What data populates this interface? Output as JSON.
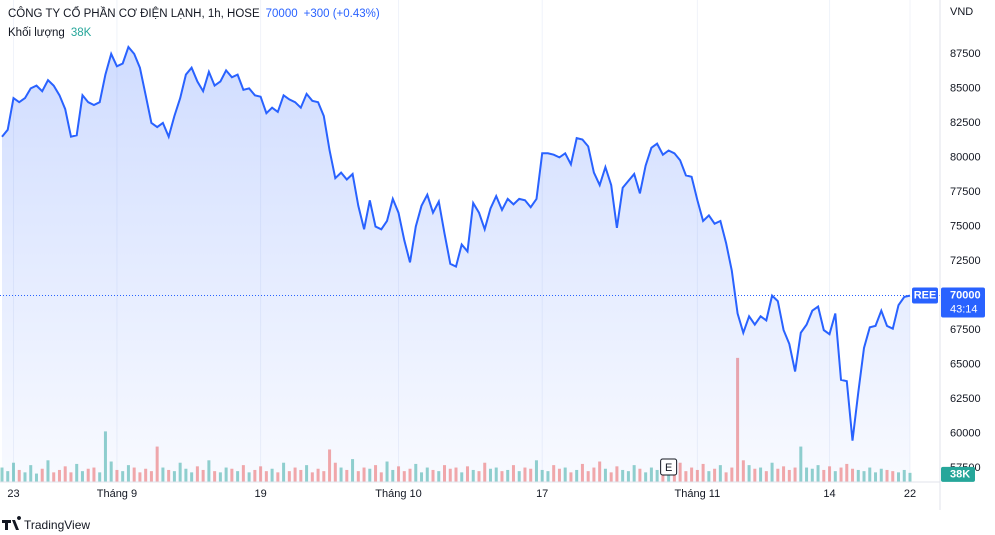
{
  "header": {
    "title": "CÔNG TY CỔ PHẦN CƠ ĐIỆN LẠNH, 1h, HOSE",
    "change": "+300 (+0.43%)",
    "volume_label": "Khối lượng"
  },
  "footer": {
    "brand": "TradingView"
  },
  "chart_data": {
    "type": "line",
    "currency": "VND",
    "series": [
      {
        "name": "REE",
        "color": "#2962ff",
        "values": [
          81500,
          82000,
          84300,
          84000,
          84300,
          85000,
          85200,
          84800,
          85600,
          85200,
          84500,
          83500,
          81500,
          81600,
          84500,
          84000,
          83800,
          84000,
          86000,
          87500,
          86600,
          86800,
          88000,
          87500,
          86500,
          84500,
          82500,
          82200,
          82500,
          81500,
          83000,
          84300,
          86000,
          86500,
          85500,
          84800,
          86200,
          85200,
          85500,
          86300,
          85800,
          86000,
          84900,
          85000,
          84500,
          84400,
          83200,
          83600,
          83300,
          84500,
          84200,
          84000,
          83600,
          84600,
          84100,
          84000,
          83000,
          80500,
          78500,
          78900,
          78400,
          78800,
          76500,
          74800,
          76900,
          75000,
          74800,
          75400,
          77000,
          76000,
          74000,
          72400,
          75000,
          76500,
          77300,
          76000,
          76800,
          74500,
          72300,
          72100,
          73700,
          73200,
          76700,
          76000,
          74800,
          76300,
          77200,
          76200,
          77000,
          76600,
          77000,
          76900,
          76400,
          77000,
          80300,
          80300,
          80200,
          80000,
          80300,
          79500,
          81400,
          81300,
          80800,
          78900,
          78000,
          79300,
          78000,
          74900,
          77800,
          78300,
          78800,
          77400,
          79400,
          80700,
          81000,
          80200,
          80500,
          80300,
          79800,
          78700,
          78600,
          76900,
          75400,
          75800,
          75200,
          75400,
          73800,
          71800,
          68700,
          67300,
          68500,
          67900,
          68500,
          68200,
          70000,
          69600,
          67500,
          66500,
          64500,
          67300,
          67900,
          68900,
          69200,
          67500,
          67200,
          68700,
          63900,
          63800,
          59500,
          63000,
          66200,
          67700,
          67800,
          68900,
          67800,
          67600,
          69300,
          69900,
          70000
        ]
      },
      {
        "name": "Khối lượng",
        "axis": "y2",
        "up_color": "#26a69a",
        "down_color": "#ef5350",
        "last_label": "38K",
        "values": [
          60,
          45,
          80,
          50,
          40,
          70,
          35,
          55,
          90,
          40,
          50,
          65,
          40,
          75,
          45,
          55,
          60,
          40,
          210,
          85,
          50,
          45,
          70,
          60,
          40,
          55,
          45,
          147,
          60,
          50,
          45,
          80,
          55,
          40,
          65,
          50,
          90,
          45,
          40,
          60,
          55,
          45,
          70,
          40,
          50,
          65,
          45,
          55,
          40,
          80,
          45,
          60,
          50,
          70,
          40,
          55,
          45,
          135,
          80,
          60,
          50,
          95,
          45,
          60,
          55,
          70,
          40,
          85,
          50,
          65,
          45,
          55,
          75,
          40,
          60,
          50,
          45,
          70,
          55,
          60,
          40,
          65,
          50,
          45,
          80,
          55,
          60,
          45,
          50,
          70,
          45,
          60,
          55,
          90,
          50,
          45,
          70,
          55,
          60,
          40,
          50,
          75,
          45,
          60,
          85,
          55,
          40,
          65,
          50,
          45,
          70,
          55,
          40,
          60,
          50,
          45,
          65,
          55,
          80,
          45,
          60,
          50,
          75,
          45,
          55,
          70,
          40,
          60,
          515,
          90,
          70,
          55,
          60,
          45,
          80,
          55,
          65,
          50,
          60,
          147,
          60,
          55,
          70,
          50,
          65,
          45,
          60,
          75,
          55,
          50,
          45,
          60,
          40,
          55,
          50,
          45,
          40,
          50,
          38
        ]
      }
    ],
    "countdown": "43:14",
    "events": [
      {
        "index": 116,
        "label": "E"
      }
    ],
    "xlim": [
      0,
      158
    ],
    "xticks": [
      {
        "value": 2,
        "label": "23"
      },
      {
        "value": 20,
        "label": "Tháng 9"
      },
      {
        "value": 45,
        "label": "19"
      },
      {
        "value": 69,
        "label": "Tháng 10"
      },
      {
        "value": 94,
        "label": "17"
      },
      {
        "value": 121,
        "label": "Tháng 11"
      },
      {
        "value": 144,
        "label": "14"
      },
      {
        "value": 158,
        "label": "22"
      }
    ],
    "ylim": [
      56500,
      91400
    ],
    "yticks": [
      57500,
      60000,
      62500,
      65000,
      67500,
      70000,
      72500,
      75000,
      77500,
      80000,
      82500,
      85000,
      87500
    ],
    "y2lim": [
      0,
      2000
    ],
    "grid": true
  }
}
